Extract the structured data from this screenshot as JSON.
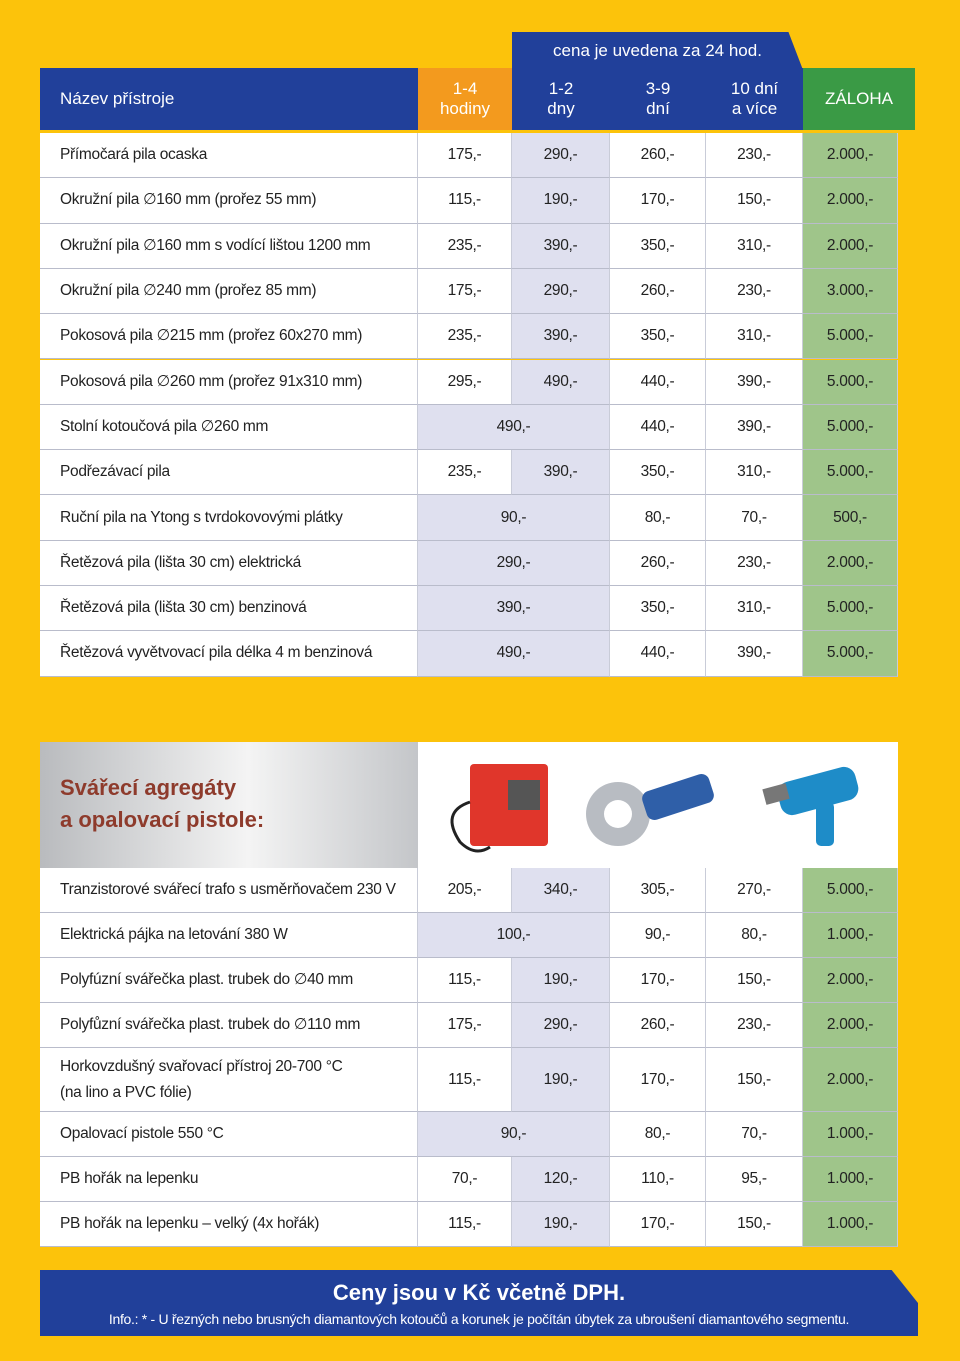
{
  "header": {
    "name_label": "Název přístroje",
    "note": "cena je uvedena za 24 hod.",
    "columns": [
      "1-4\nhodiny",
      "1-2\ndny",
      "3-9\ndní",
      "10 dní\na více",
      "ZÁLOHA"
    ]
  },
  "tables": [
    {
      "rows": [
        {
          "name": "Přímočará pila ocaska",
          "prices": [
            "175,-",
            "290,-",
            "260,-",
            "230,-",
            "2.000,-"
          ]
        },
        {
          "name": "Okružní pila ∅160 mm (prořez 55 mm)",
          "prices": [
            "115,-",
            "190,-",
            "170,-",
            "150,-",
            "2.000,-"
          ]
        },
        {
          "name": "Okružní pila ∅160 mm s vodící lištou 1200 mm",
          "prices": [
            "235,-",
            "390,-",
            "350,-",
            "310,-",
            "2.000,-"
          ]
        },
        {
          "name": "Okružní pila ∅240 mm (prořez 85 mm)",
          "prices": [
            "175,-",
            "290,-",
            "260,-",
            "230,-",
            "3.000,-"
          ]
        },
        {
          "name": "Pokosová pila ∅215 mm (prořez 60x270 mm)",
          "prices": [
            "235,-",
            "390,-",
            "350,-",
            "310,-",
            "5.000,-"
          ]
        },
        {
          "name": "Pokosová pila ∅260 mm (prořez 91x310 mm)",
          "prices": [
            "295,-",
            "490,-",
            "440,-",
            "390,-",
            "5.000,-"
          ]
        },
        {
          "name": "Stolní kotoučová pila ∅260 mm",
          "prices": [
            "490,-",
            "440,-",
            "390,-",
            "5.000,-"
          ]
        },
        {
          "name": "Podřezávací pila",
          "prices": [
            "235,-",
            "390,-",
            "350,-",
            "310,-",
            "5.000,-"
          ]
        },
        {
          "name": "Ruční pila na Ytong s tvrdokovovými plátky",
          "prices": [
            "90,-",
            "80,-",
            "70,-",
            "500,-"
          ]
        },
        {
          "name": "Řetězová pila (lišta 30 cm) elektrická",
          "prices": [
            "290,-",
            "260,-",
            "230,-",
            "2.000,-"
          ]
        },
        {
          "name": "Řetězová pila (lišta 30 cm) benzinová",
          "prices": [
            "390,-",
            "350,-",
            "310,-",
            "5.000,-"
          ]
        },
        {
          "name": "Řetězová vyvětvovací pila délka 4 m benzinová",
          "prices": [
            "490,-",
            "440,-",
            "390,-",
            "5.000,-"
          ]
        }
      ]
    },
    {
      "heading": "Svářecí agregáty\na opalovací pistole:",
      "rows": [
        {
          "name": "Tranzistorové svářecí trafo s usměrňovačem 230 V",
          "prices": [
            "205,-",
            "340,-",
            "305,-",
            "270,-",
            "5.000,-"
          ]
        },
        {
          "name": "Elektrická pájka na letování 380 W",
          "prices": [
            "100,-",
            "90,-",
            "80,-",
            "1.000,-"
          ]
        },
        {
          "name": "Polyfúzní svářečka plast. trubek do ∅40 mm",
          "prices": [
            "115,-",
            "190,-",
            "170,-",
            "150,-",
            "2.000,-"
          ]
        },
        {
          "name": "Polyfůzní svářečka plast. trubek do ∅110 mm",
          "prices": [
            "175,-",
            "290,-",
            "260,-",
            "230,-",
            "2.000,-"
          ]
        },
        {
          "name": "Horkovzdušný svařovací přístroj 20-700 °C\n(na lino a PVC fólie)",
          "prices": [
            "115,-",
            "190,-",
            "170,-",
            "150,-",
            "2.000,-"
          ]
        },
        {
          "name": "Opalovací pistole 550 °C",
          "prices": [
            "90,-",
            "80,-",
            "70,-",
            "1.000,-"
          ]
        },
        {
          "name": "PB hořák na lepenku",
          "prices": [
            "70,-",
            "120,-",
            "110,-",
            "95,-",
            "1.000,-"
          ]
        },
        {
          "name": "PB hořák na lepenku – velký  (4x hořák)",
          "prices": [
            "115,-",
            "190,-",
            "170,-",
            "150,-",
            "1.000,-"
          ]
        }
      ]
    }
  ],
  "footer": {
    "title": "Ceny jsou v Kč včetně DPH.",
    "info": "Info.: * -  U řezných nebo brusných diamantových kotoučů a korunek je počítán úbytek za ubroušení diamantového segmentu."
  }
}
